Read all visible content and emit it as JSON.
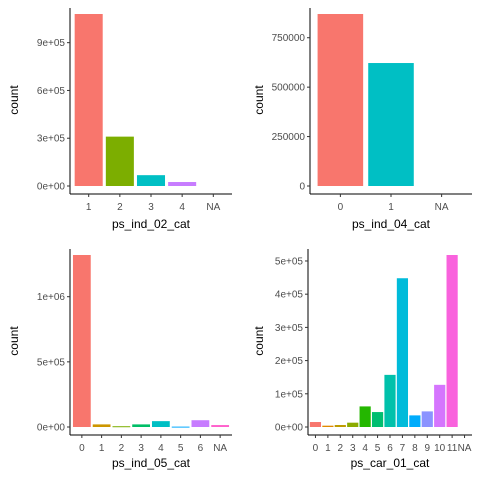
{
  "chart_data": [
    {
      "type": "bar",
      "xlabel": "ps_ind_02_cat",
      "ylabel": "count",
      "categories": [
        "1",
        "2",
        "3",
        "4",
        "NA"
      ],
      "values": [
        1080000,
        310000,
        68000,
        25000,
        0
      ],
      "colors": [
        "#F8766D",
        "#7CAE00",
        "#00BFC4",
        "#C77CFF",
        "#999999"
      ],
      "ylim": [
        0,
        1080000
      ],
      "yticks": [
        0,
        300000,
        600000,
        900000
      ],
      "ytick_labels": [
        "0e+00",
        "3e+05",
        "6e+05",
        "9e+05"
      ],
      "grid": false
    },
    {
      "type": "bar",
      "xlabel": "ps_ind_04_cat",
      "ylabel": "count",
      "categories": [
        "0",
        "1",
        "NA"
      ],
      "values": [
        870000,
        622000,
        0
      ],
      "colors": [
        "#F8766D",
        "#00BFC4",
        "#999999"
      ],
      "ylim": [
        0,
        870000
      ],
      "yticks": [
        0,
        250000,
        500000,
        750000
      ],
      "ytick_labels": [
        "0",
        "250000",
        "500000",
        "750000"
      ],
      "grid": false
    },
    {
      "type": "bar",
      "xlabel": "ps_ind_05_cat",
      "ylabel": "count",
      "categories": [
        "0",
        "1",
        "2",
        "3",
        "4",
        "5",
        "6",
        "NA"
      ],
      "values": [
        1320000,
        20000,
        6000,
        20000,
        45000,
        3000,
        52000,
        15000
      ],
      "colors": [
        "#F8766D",
        "#CD9600",
        "#7CAE00",
        "#00BE67",
        "#00BFC4",
        "#00A9FF",
        "#C77CFF",
        "#FF61CC"
      ],
      "ylim": [
        0,
        1320000
      ],
      "yticks": [
        0,
        500000,
        1000000
      ],
      "ytick_labels": [
        "0e+00",
        "5e+05",
        "1e+06"
      ],
      "grid": false
    },
    {
      "type": "bar",
      "xlabel": "ps_car_01_cat",
      "ylabel": "count",
      "categories": [
        "0",
        "1",
        "2",
        "3",
        "4",
        "5",
        "6",
        "7",
        "8",
        "9",
        "10",
        "11",
        "NA"
      ],
      "values": [
        15000,
        4000,
        6000,
        13000,
        62000,
        45000,
        157000,
        448000,
        35000,
        47000,
        127000,
        518000,
        0
      ],
      "colors": [
        "#F8766D",
        "#E18A00",
        "#BE9C00",
        "#8CAB00",
        "#24B700",
        "#00BE70",
        "#00C1AB",
        "#00BBDA",
        "#00ACFC",
        "#8B93FF",
        "#D575FE",
        "#F962DD",
        "#FF65AC"
      ],
      "ylim": [
        0,
        518000
      ],
      "yticks": [
        0,
        100000,
        200000,
        300000,
        400000,
        500000
      ],
      "ytick_labels": [
        "0e+00",
        "1e+05",
        "2e+05",
        "3e+05",
        "4e+05",
        "5e+05"
      ],
      "grid": false
    }
  ]
}
